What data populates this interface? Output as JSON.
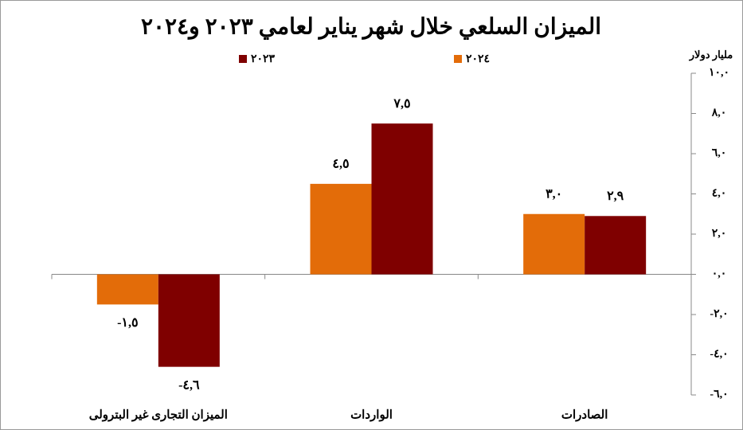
{
  "chart_data": {
    "type": "bar",
    "title": "الميزان السلعي خلال شهر يناير لعامي ٢٠٢٣ و٢٠٢٤",
    "y_axis_label": "مليار دولار",
    "categories": [
      "الميزان التجارى غير البترولى",
      "الواردات",
      "الصادرات"
    ],
    "series": [
      {
        "name": "٢٠٢٤",
        "color": "#e36c09",
        "values": [
          -1.5,
          4.5,
          3.0
        ],
        "value_labels": [
          "-١,٥",
          "٤,٥",
          "٣,٠"
        ]
      },
      {
        "name": "٢٠٢٣",
        "color": "#7f0000",
        "values": [
          -4.6,
          7.5,
          2.9
        ],
        "value_labels": [
          "-٤,٦",
          "٧,٥",
          "٢,٩"
        ]
      }
    ],
    "ylim": [
      -6,
      10
    ],
    "yticks": [
      {
        "value": -6,
        "label": "-٦,٠"
      },
      {
        "value": -4,
        "label": "-٤,٠"
      },
      {
        "value": -2,
        "label": "-٢,٠"
      },
      {
        "value": 0,
        "label": "٠,٠"
      },
      {
        "value": 2,
        "label": "٢,٠"
      },
      {
        "value": 4,
        "label": "٤,٠"
      },
      {
        "value": 6,
        "label": "٦,٠"
      },
      {
        "value": 8,
        "label": "٨,٠"
      },
      {
        "value": 10,
        "label": "١٠,٠"
      }
    ],
    "grid": false
  }
}
